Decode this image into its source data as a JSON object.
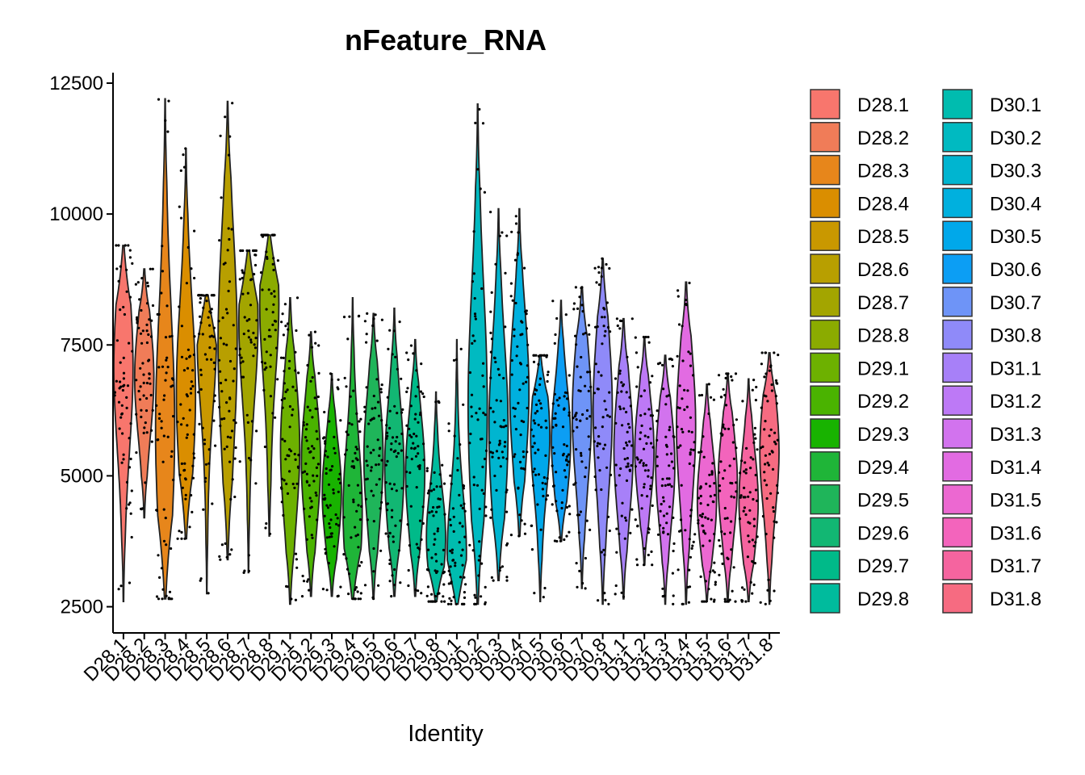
{
  "chart_data": {
    "type": "violin",
    "title": "nFeature_RNA",
    "xlabel": "Identity",
    "ylabel": "",
    "ylim": [
      2000,
      12700
    ],
    "y_ticks": [
      "2500",
      "5000",
      "7500",
      "10000",
      "12500"
    ],
    "legend_position": "right",
    "groups": [
      {
        "name": "D28.1",
        "color": "#F8766D",
        "min": 2600,
        "max": 9400,
        "median": 6900,
        "dense": 7100
      },
      {
        "name": "D28.2",
        "color": "#F07C58",
        "min": 4200,
        "max": 8950,
        "median": 6700,
        "dense": 6900
      },
      {
        "name": "D28.3",
        "color": "#E7861B",
        "min": 2650,
        "max": 12200,
        "median": 6000,
        "dense": 5900
      },
      {
        "name": "D28.4",
        "color": "#DA8E00",
        "min": 3800,
        "max": 11250,
        "median": 6400,
        "dense": 6600
      },
      {
        "name": "D28.5",
        "color": "#C99800",
        "min": 2750,
        "max": 8450,
        "median": 7000,
        "dense": 7700
      },
      {
        "name": "D28.6",
        "color": "#B89F00",
        "min": 3400,
        "max": 12150,
        "median": 7100,
        "dense": 7600
      },
      {
        "name": "D28.7",
        "color": "#A3A500",
        "min": 3150,
        "max": 9300,
        "median": 7400,
        "dense": 8000
      },
      {
        "name": "D28.8",
        "color": "#8BAB00",
        "min": 3850,
        "max": 9600,
        "median": 7200,
        "dense": 8400
      },
      {
        "name": "D29.1",
        "color": "#6DB100",
        "min": 2550,
        "max": 8400,
        "median": 5000,
        "dense": 5600
      },
      {
        "name": "D29.2",
        "color": "#4AB300",
        "min": 2700,
        "max": 7750,
        "median": 4900,
        "dense": 5300
      },
      {
        "name": "D29.3",
        "color": "#18B300",
        "min": 2700,
        "max": 6950,
        "median": 4500,
        "dense": 4700
      },
      {
        "name": "D29.4",
        "color": "#1FB538",
        "min": 2650,
        "max": 8400,
        "median": 4500,
        "dense": 4300
      },
      {
        "name": "D29.5",
        "color": "#1FB55A",
        "min": 2650,
        "max": 8100,
        "median": 5000,
        "dense": 5400
      },
      {
        "name": "D29.6",
        "color": "#12B773",
        "min": 2700,
        "max": 8200,
        "median": 4700,
        "dense": 5200
      },
      {
        "name": "D29.7",
        "color": "#00BA89",
        "min": 2700,
        "max": 7600,
        "median": 4700,
        "dense": 5100
      },
      {
        "name": "D29.8",
        "color": "#00BB9D",
        "min": 2600,
        "max": 6600,
        "median": 4000,
        "dense": 3800
      },
      {
        "name": "D30.1",
        "color": "#00BCAF",
        "min": 2550,
        "max": 7600,
        "median": 3700,
        "dense": 3500
      },
      {
        "name": "D30.2",
        "color": "#00BAC1",
        "min": 2550,
        "max": 12100,
        "median": 6000,
        "dense": 6400
      },
      {
        "name": "D30.3",
        "color": "#00B5D0",
        "min": 3000,
        "max": 10100,
        "median": 5800,
        "dense": 5900
      },
      {
        "name": "D30.4",
        "color": "#00B0DE",
        "min": 3850,
        "max": 10100,
        "median": 6000,
        "dense": 6700
      },
      {
        "name": "D30.5",
        "color": "#00A8EA",
        "min": 2600,
        "max": 7300,
        "median": 5400,
        "dense": 5800
      },
      {
        "name": "D30.6",
        "color": "#0C9EF4",
        "min": 3750,
        "max": 8350,
        "median": 5500,
        "dense": 5700
      },
      {
        "name": "D30.7",
        "color": "#6E94F7",
        "min": 2850,
        "max": 8600,
        "median": 6000,
        "dense": 6200
      },
      {
        "name": "D30.8",
        "color": "#8F8AF9",
        "min": 2550,
        "max": 9150,
        "median": 5900,
        "dense": 6300
      },
      {
        "name": "D31.1",
        "color": "#A780F8",
        "min": 2650,
        "max": 8000,
        "median": 5400,
        "dense": 5500
      },
      {
        "name": "D31.2",
        "color": "#BD79F6",
        "min": 3300,
        "max": 7650,
        "median": 5400,
        "dense": 5500
      },
      {
        "name": "D31.3",
        "color": "#D273EE",
        "min": 2550,
        "max": 7300,
        "median": 5100,
        "dense": 5200
      },
      {
        "name": "D31.4",
        "color": "#E26BE2",
        "min": 2550,
        "max": 8700,
        "median": 5600,
        "dense": 6000
      },
      {
        "name": "D31.5",
        "color": "#EC68D1",
        "min": 2600,
        "max": 6750,
        "median": 4700,
        "dense": 4500
      },
      {
        "name": "D31.6",
        "color": "#F364BC",
        "min": 2600,
        "max": 6950,
        "median": 4700,
        "dense": 4900
      },
      {
        "name": "D31.7",
        "color": "#F5649F",
        "min": 2600,
        "max": 6850,
        "median": 4600,
        "dense": 4500
      },
      {
        "name": "D31.8",
        "color": "#F66B81",
        "min": 2550,
        "max": 7350,
        "median": 5200,
        "dense": 5500
      }
    ]
  }
}
